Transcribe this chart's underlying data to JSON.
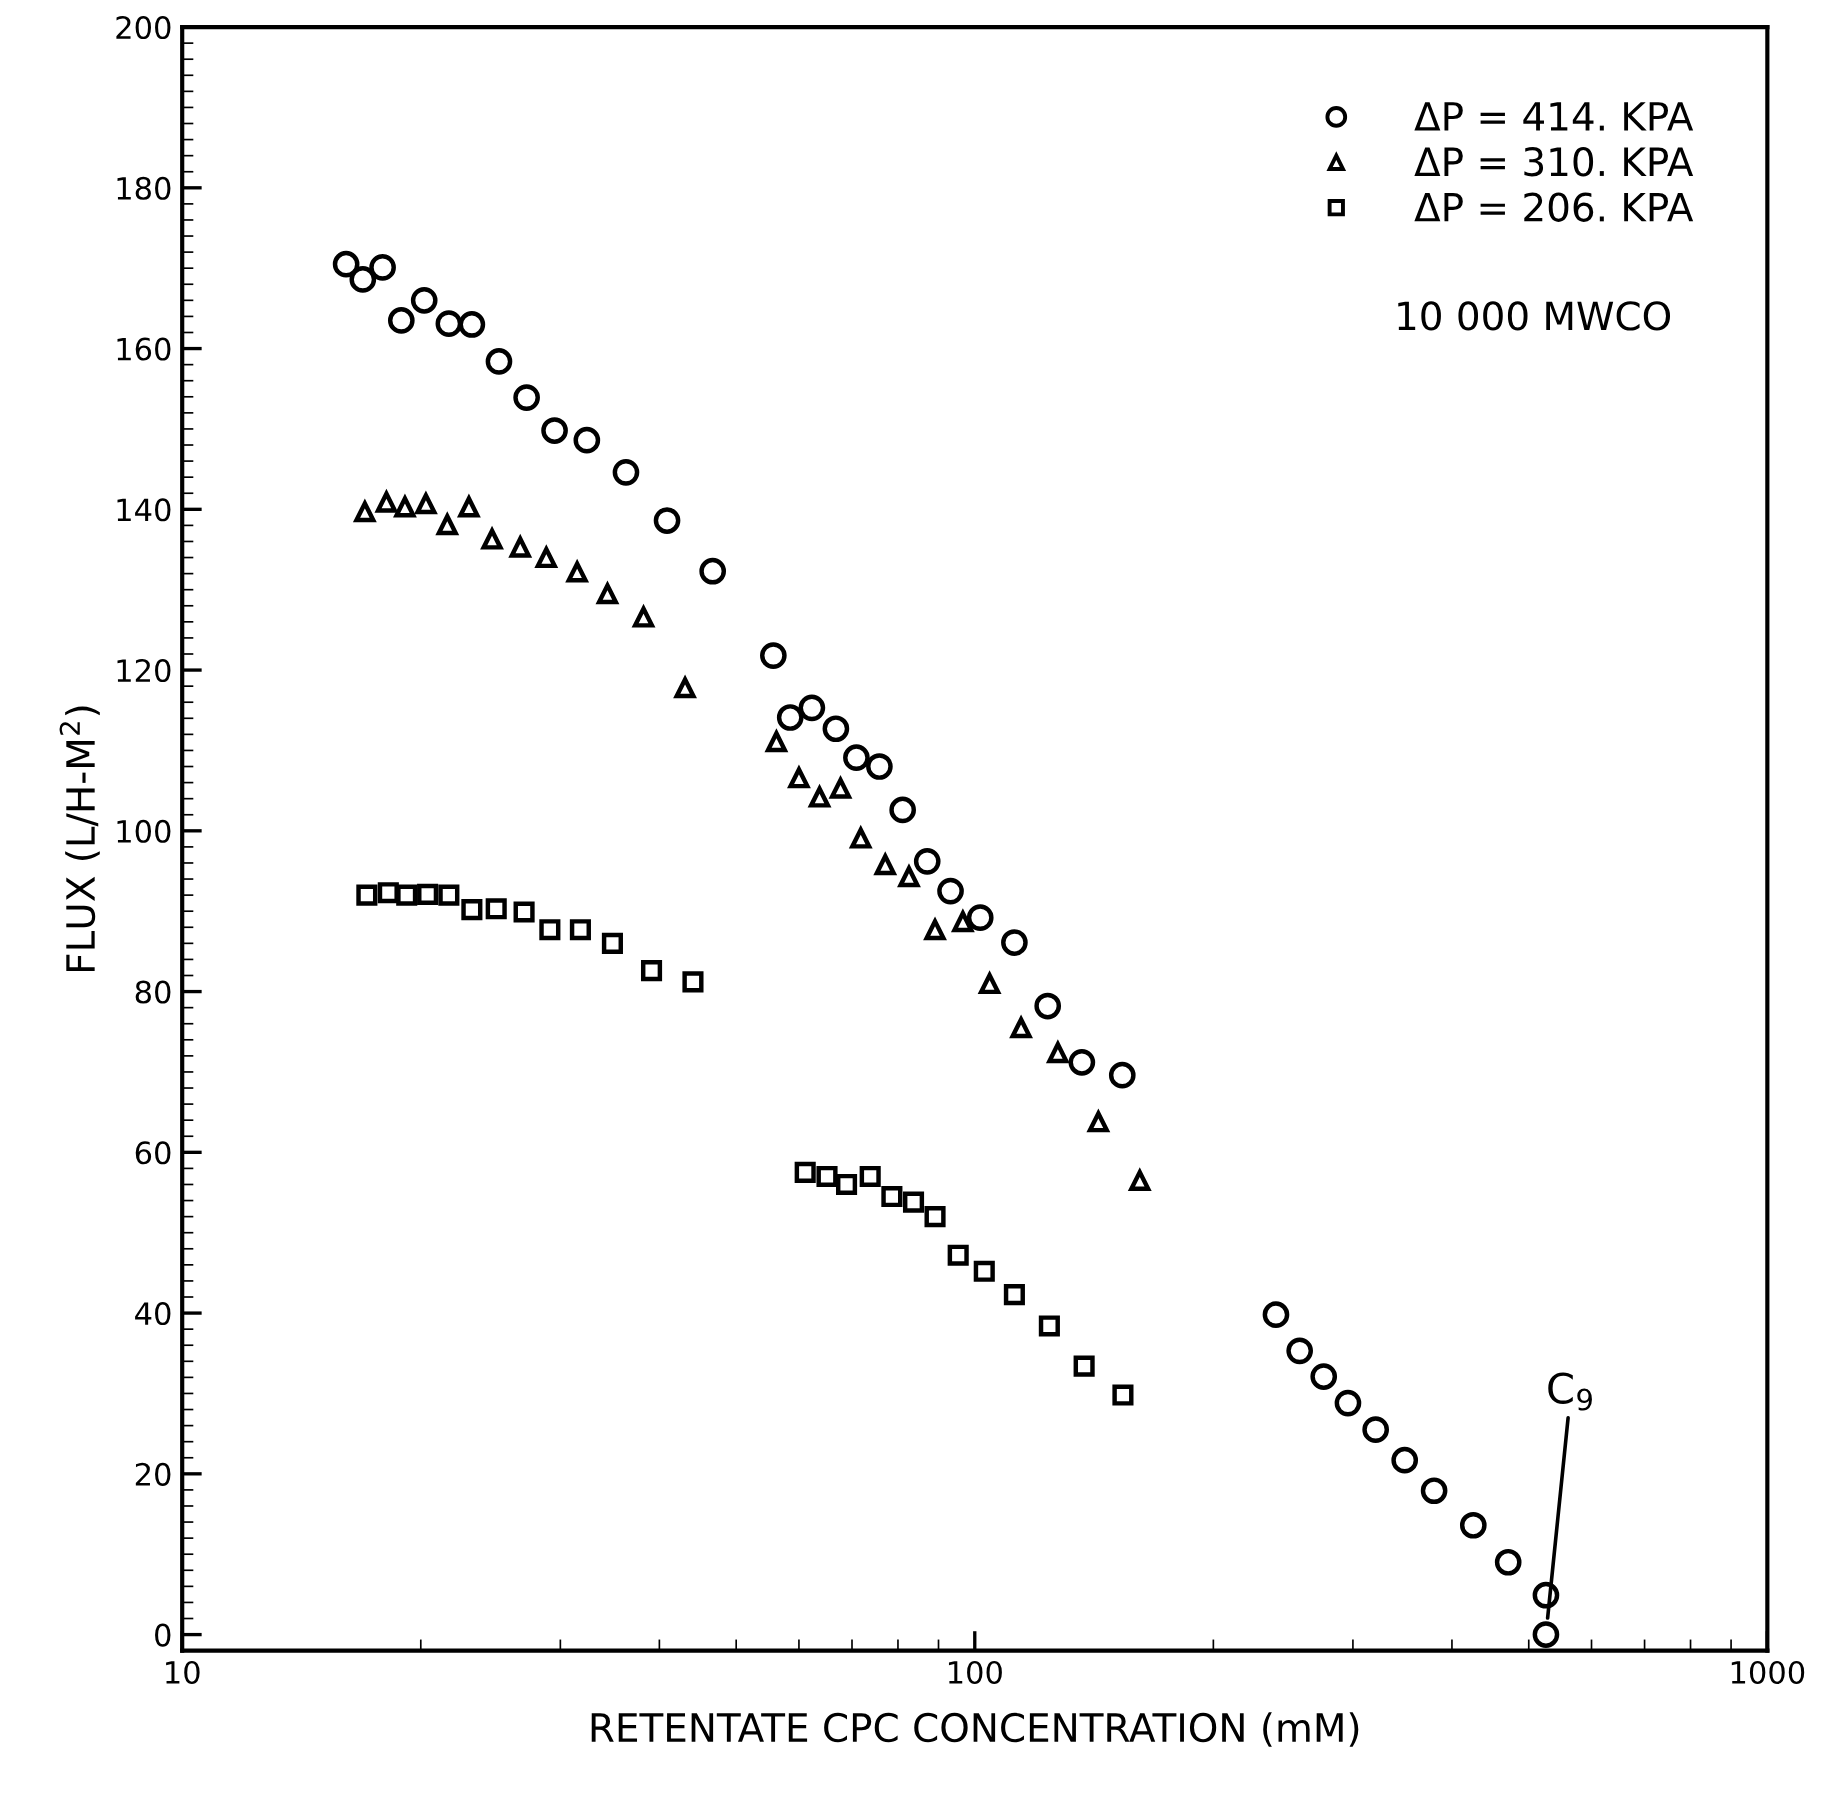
{
  "chart_data": {
    "type": "scatter",
    "xlabel": "RETENTATE CPC CONCENTRATION (mM)",
    "ylabel": "FLUX (L/H-M$^{2}$)",
    "log": "x",
    "xlim": [
      10,
      1000
    ],
    "xticks": [
      10,
      100,
      1000
    ],
    "ylim": [
      -2,
      200
    ],
    "yticks": [
      0,
      20,
      40,
      60,
      80,
      100,
      120,
      140,
      160,
      180,
      200
    ],
    "grid": false,
    "legend": "top right",
    "annotations": [
      "10 000 MWCO",
      {
        "text": "C$_{9}$",
        "x": 525.6,
        "y": 0
      }
    ],
    "series": [
      {
        "name": "ΔP = 414. KPA",
        "color": "#000000",
        "marker": "circle",
        "x": [
          16.1,
          16.9,
          17.9,
          18.9,
          20.2,
          21.7,
          23.2,
          25.1,
          27.2,
          29.5,
          32.4,
          36.3,
          40.9,
          46.7,
          55.7,
          58.5,
          62.3,
          66.8,
          70.9,
          75.8,
          81.1,
          87.1,
          93.2,
          101.6,
          112.2,
          123.6,
          136.5,
          153.5,
          239.9,
          257,
          275.6,
          295.7,
          320.5,
          348.7,
          379.8,
          425.6,
          471,
          525.6
        ],
        "values": [
          170.5,
          168.6,
          170.1,
          163.5,
          166.0,
          163.1,
          163.0,
          158.4,
          153.9,
          149.8,
          148.6,
          144.6,
          138.6,
          132.3,
          121.8,
          114.1,
          115.3,
          112.7,
          109.1,
          108.0,
          102.6,
          96.2,
          92.5,
          89.2,
          86.1,
          78.2,
          71.2,
          69.6,
          39.8,
          35.3,
          32.1,
          28.8,
          25.5,
          21.7,
          17.9,
          13.6,
          9.0,
          4.9
        ]
      },
      {
        "name": "ΔP = 310. KPA",
        "color": "#000000",
        "marker": "triangle",
        "x": [
          17.0,
          18.1,
          19.1,
          20.3,
          21.6,
          23.0,
          24.6,
          26.7,
          28.8,
          31.5,
          34.4,
          38.2,
          43.1,
          56.2,
          60.0,
          63.7,
          67.7,
          71.8,
          77.1,
          82.6,
          89.1,
          96.6,
          104.4,
          114.4,
          127.3,
          143.2,
          161.5
        ],
        "values": [
          139.7,
          140.9,
          140.3,
          140.7,
          138.1,
          140.3,
          136.3,
          135.3,
          134.0,
          132.2,
          129.5,
          126.6,
          117.8,
          111.1,
          106.6,
          104.2,
          105.3,
          99.1,
          95.8,
          94.3,
          87.7,
          88.7,
          81.0,
          75.5,
          72.4,
          63.8,
          56.5
        ]
      },
      {
        "name": "ΔP = 206. KPA",
        "color": "#000000",
        "marker": "square",
        "x": [
          17.1,
          18.2,
          19.2,
          20.4,
          21.7,
          23.2,
          24.9,
          27.0,
          29.1,
          31.8,
          34.9,
          39.1,
          44.1,
          61.1,
          65.1,
          68.9,
          73.8,
          78.6,
          83.7,
          89.1,
          95.3,
          102.8,
          112.2,
          124.2,
          137.4,
          153.8
        ],
        "values": [
          92.0,
          92.3,
          92.0,
          92.1,
          92.0,
          90.2,
          90.3,
          89.9,
          87.7,
          87.7,
          86.0,
          82.6,
          81.2,
          57.5,
          57.0,
          56.0,
          57.0,
          54.5,
          53.8,
          52.0,
          47.2,
          45.2,
          42.3,
          38.4,
          33.4,
          29.8
        ]
      },
      {
        "color": "#000000",
        "marker": "circle",
        "x": [
          525.6
        ],
        "values": [
          0
        ]
      }
    ]
  }
}
